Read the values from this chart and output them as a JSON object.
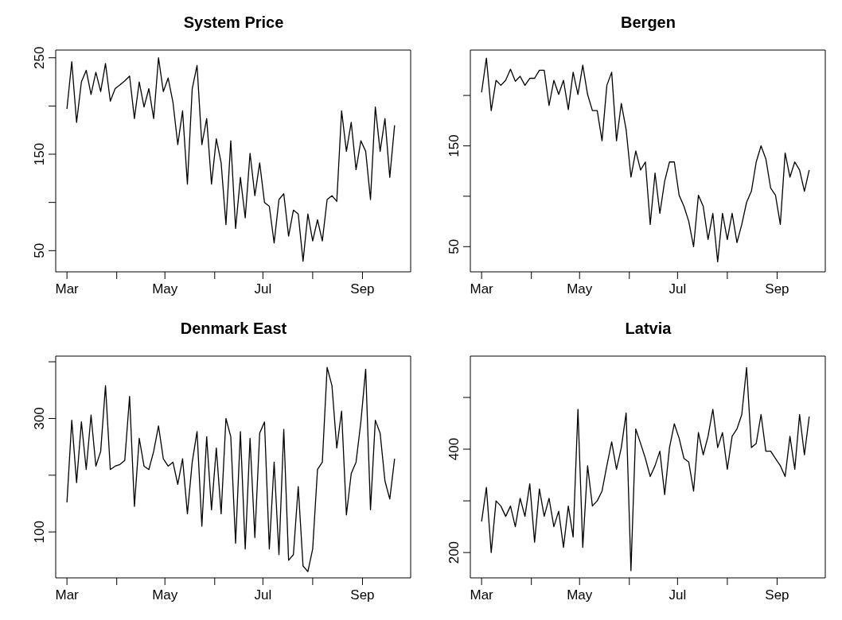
{
  "chart_data": [
    {
      "type": "line",
      "title": "System Price",
      "color": "#000000",
      "x": [
        "--03-01",
        "--03-04",
        "--03-07",
        "--03-10",
        "--03-13",
        "--03-16",
        "--03-19",
        "--03-22",
        "--03-25",
        "--03-28",
        "--03-31",
        "--04-03",
        "--04-06",
        "--04-09",
        "--04-12",
        "--04-15",
        "--04-18",
        "--04-21",
        "--04-24",
        "--04-27",
        "--04-30",
        "--05-03",
        "--05-06",
        "--05-09",
        "--05-12",
        "--05-15",
        "--05-18",
        "--05-21",
        "--05-24",
        "--05-27",
        "--05-30",
        "--06-02",
        "--06-05",
        "--06-08",
        "--06-11",
        "--06-14",
        "--06-17",
        "--06-20",
        "--06-23",
        "--06-26",
        "--06-29",
        "--07-02",
        "--07-05",
        "--07-08",
        "--07-11",
        "--07-14",
        "--07-17",
        "--07-20",
        "--07-23",
        "--07-26",
        "--07-29",
        "--08-01",
        "--08-04",
        "--08-07",
        "--08-10",
        "--08-13",
        "--08-16",
        "--08-19",
        "--08-22",
        "--08-25",
        "--08-28",
        "--08-31",
        "--09-03",
        "--09-06",
        "--09-09",
        "--09-12",
        "--09-15",
        "--09-18",
        "--09-21"
      ],
      "values": [
        197,
        246,
        183,
        225,
        237,
        212,
        235,
        215,
        244,
        205,
        218,
        222,
        226,
        231,
        187,
        225,
        199,
        218,
        187,
        250,
        215,
        229,
        204,
        160,
        195,
        119,
        218,
        242,
        160,
        187,
        119,
        166,
        141,
        77,
        164,
        73,
        126,
        84,
        151,
        107,
        141,
        100,
        96,
        58,
        103,
        109,
        65,
        92,
        88,
        39,
        88,
        60,
        82,
        60,
        103,
        107,
        101,
        195,
        153,
        183,
        134,
        164,
        153,
        103,
        199,
        153,
        187,
        126,
        180
      ],
      "xlim": [
        "--02-22",
        "--10-01"
      ],
      "xticks": [
        {
          "value": "--03-01",
          "label": "Mar"
        },
        {
          "value": "--04-01",
          "label": null
        },
        {
          "value": "--05-01",
          "label": "May"
        },
        {
          "value": "--06-01",
          "label": null
        },
        {
          "value": "--07-01",
          "label": "Jul"
        },
        {
          "value": "--08-01",
          "label": null
        },
        {
          "value": "--09-01",
          "label": "Sep"
        }
      ],
      "ylim": [
        28,
        258
      ],
      "yticks": [
        50,
        {
          "value": 100,
          "label": null
        },
        150,
        {
          "value": 200,
          "label": null
        },
        250
      ]
    },
    {
      "type": "line",
      "title": "Bergen",
      "color": "#000000",
      "x": [
        "--03-01",
        "--03-04",
        "--03-07",
        "--03-10",
        "--03-13",
        "--03-16",
        "--03-19",
        "--03-22",
        "--03-25",
        "--03-28",
        "--03-31",
        "--04-03",
        "--04-06",
        "--04-09",
        "--04-12",
        "--04-15",
        "--04-18",
        "--04-21",
        "--04-24",
        "--04-27",
        "--04-30",
        "--05-03",
        "--05-06",
        "--05-09",
        "--05-12",
        "--05-15",
        "--05-18",
        "--05-21",
        "--05-24",
        "--05-27",
        "--05-30",
        "--06-02",
        "--06-05",
        "--06-08",
        "--06-11",
        "--06-14",
        "--06-17",
        "--06-20",
        "--06-23",
        "--06-26",
        "--06-29",
        "--07-02",
        "--07-05",
        "--07-08",
        "--07-11",
        "--07-14",
        "--07-17",
        "--07-20",
        "--07-23",
        "--07-26",
        "--07-29",
        "--08-01",
        "--08-04",
        "--08-07",
        "--08-10",
        "--08-13",
        "--08-16",
        "--08-19",
        "--08-22",
        "--08-25",
        "--08-28",
        "--08-31",
        "--09-03",
        "--09-06",
        "--09-09",
        "--09-12",
        "--09-15",
        "--09-18",
        "--09-21"
      ],
      "values": [
        203,
        237,
        185,
        215,
        210,
        215,
        226,
        214,
        219,
        210,
        217,
        217,
        225,
        225,
        190,
        215,
        201,
        215,
        186,
        223,
        201,
        230,
        201,
        185,
        185,
        155,
        210,
        223,
        155,
        192,
        166,
        119,
        145,
        126,
        134,
        72,
        123,
        83,
        115,
        134,
        134,
        101,
        90,
        75,
        50,
        101,
        90,
        57,
        83,
        35,
        83,
        57,
        83,
        54,
        72,
        94,
        105,
        134,
        150,
        137,
        108,
        101,
        72,
        143,
        119,
        134,
        126,
        105,
        126
      ],
      "xlim": [
        "--02-22",
        "--10-01"
      ],
      "xticks": [
        {
          "value": "--03-01",
          "label": "Mar"
        },
        {
          "value": "--04-01",
          "label": null
        },
        {
          "value": "--05-01",
          "label": "May"
        },
        {
          "value": "--06-01",
          "label": null
        },
        {
          "value": "--07-01",
          "label": "Jul"
        },
        {
          "value": "--08-01",
          "label": null
        },
        {
          "value": "--09-01",
          "label": "Sep"
        }
      ],
      "ylim": [
        25,
        245
      ],
      "yticks": [
        50,
        {
          "value": 100,
          "label": null
        },
        150,
        {
          "value": 200,
          "label": null
        }
      ]
    },
    {
      "type": "line",
      "title": "Denmark East",
      "color": "#000000",
      "x": [
        "--03-01",
        "--03-04",
        "--03-07",
        "--03-10",
        "--03-13",
        "--03-16",
        "--03-19",
        "--03-22",
        "--03-25",
        "--03-28",
        "--03-31",
        "--04-03",
        "--04-06",
        "--04-09",
        "--04-12",
        "--04-15",
        "--04-18",
        "--04-21",
        "--04-24",
        "--04-27",
        "--04-30",
        "--05-03",
        "--05-06",
        "--05-09",
        "--05-12",
        "--05-15",
        "--05-18",
        "--05-21",
        "--05-24",
        "--05-27",
        "--05-30",
        "--06-02",
        "--06-05",
        "--06-08",
        "--06-11",
        "--06-14",
        "--06-17",
        "--06-20",
        "--06-23",
        "--06-26",
        "--06-29",
        "--07-02",
        "--07-05",
        "--07-08",
        "--07-11",
        "--07-14",
        "--07-17",
        "--07-20",
        "--07-23",
        "--07-26",
        "--07-29",
        "--08-01",
        "--08-04",
        "--08-07",
        "--08-10",
        "--08-13",
        "--08-16",
        "--08-19",
        "--08-22",
        "--08-25",
        "--08-28",
        "--08-31",
        "--09-03",
        "--09-06",
        "--09-09",
        "--09-12",
        "--09-15",
        "--09-18",
        "--09-21"
      ],
      "values": [
        152,
        297,
        187,
        294,
        210,
        306,
        216,
        242,
        358,
        210,
        216,
        219,
        226,
        339,
        145,
        265,
        216,
        210,
        242,
        287,
        229,
        216,
        223,
        184,
        229,
        132,
        223,
        277,
        110,
        268,
        139,
        248,
        132,
        300,
        268,
        80,
        277,
        70,
        265,
        90,
        274,
        294,
        70,
        223,
        60,
        281,
        50,
        60,
        180,
        40,
        30,
        70,
        210,
        223,
        390,
        358,
        248,
        313,
        130,
        203,
        223,
        294,
        387,
        139,
        297,
        274,
        190,
        158,
        229
      ],
      "xlim": [
        "--02-22",
        "--10-01"
      ],
      "xticks": [
        {
          "value": "--03-01",
          "label": "Mar"
        },
        {
          "value": "--04-01",
          "label": null
        },
        {
          "value": "--05-01",
          "label": "May"
        },
        {
          "value": "--06-01",
          "label": null
        },
        {
          "value": "--07-01",
          "label": "Jul"
        },
        {
          "value": "--08-01",
          "label": null
        },
        {
          "value": "--09-01",
          "label": "Sep"
        }
      ],
      "ylim": [
        19,
        410
      ],
      "yticks": [
        100,
        {
          "value": 200,
          "label": null
        },
        300,
        {
          "value": 400,
          "label": null
        }
      ]
    },
    {
      "type": "line",
      "title": "Latvia",
      "color": "#000000",
      "x": [
        "--03-01",
        "--03-04",
        "--03-07",
        "--03-10",
        "--03-13",
        "--03-16",
        "--03-19",
        "--03-22",
        "--03-25",
        "--03-28",
        "--03-31",
        "--04-03",
        "--04-06",
        "--04-09",
        "--04-12",
        "--04-15",
        "--04-18",
        "--04-21",
        "--04-24",
        "--04-27",
        "--04-30",
        "--05-03",
        "--05-06",
        "--05-09",
        "--05-12",
        "--05-15",
        "--05-18",
        "--05-21",
        "--05-24",
        "--05-27",
        "--05-30",
        "--06-02",
        "--06-05",
        "--06-08",
        "--06-11",
        "--06-14",
        "--06-17",
        "--06-20",
        "--06-23",
        "--06-26",
        "--06-29",
        "--07-02",
        "--07-05",
        "--07-08",
        "--07-11",
        "--07-14",
        "--07-17",
        "--07-20",
        "--07-23",
        "--07-26",
        "--07-29",
        "--08-01",
        "--08-04",
        "--08-07",
        "--08-10",
        "--08-13",
        "--08-16",
        "--08-19",
        "--08-22",
        "--08-25",
        "--08-28",
        "--08-31",
        "--09-03",
        "--09-06",
        "--09-09",
        "--09-12",
        "--09-15",
        "--09-18",
        "--09-21"
      ],
      "values": [
        260,
        326,
        200,
        300,
        290,
        270,
        290,
        250,
        305,
        270,
        333,
        220,
        323,
        270,
        305,
        250,
        280,
        210,
        290,
        230,
        477,
        210,
        368,
        290,
        300,
        319,
        368,
        414,
        361,
        403,
        470,
        165,
        439,
        411,
        382,
        347,
        368,
        396,
        312,
        403,
        449,
        421,
        382,
        375,
        319,
        432,
        389,
        425,
        477,
        403,
        432,
        361,
        425,
        439,
        467,
        558,
        403,
        411,
        467,
        396,
        396,
        382,
        368,
        347,
        425,
        361,
        467,
        389,
        463
      ],
      "xlim": [
        "--02-22",
        "--10-01"
      ],
      "xticks": [
        {
          "value": "--03-01",
          "label": "Mar"
        },
        {
          "value": "--04-01",
          "label": null
        },
        {
          "value": "--05-01",
          "label": "May"
        },
        {
          "value": "--06-01",
          "label": null
        },
        {
          "value": "--07-01",
          "label": "Jul"
        },
        {
          "value": "--08-01",
          "label": null
        },
        {
          "value": "--09-01",
          "label": "Sep"
        }
      ],
      "ylim": [
        151,
        580
      ],
      "yticks": [
        200,
        {
          "value": 300,
          "label": null
        },
        400,
        {
          "value": 500,
          "label": null
        }
      ]
    }
  ]
}
